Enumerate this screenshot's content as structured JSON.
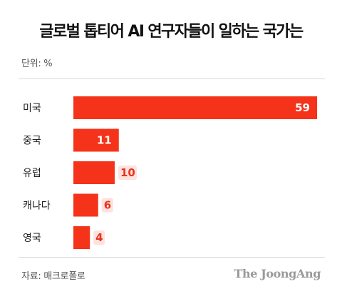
{
  "header": {
    "title": "글로벌 톱티어 AI 연구자들이 일하는 국가는",
    "unit": "단위: %"
  },
  "footer": {
    "source": "자료: 매크로폴로",
    "brand": "The JoongAng"
  },
  "colors": {
    "bar": "#f5331a",
    "value_label": "#e8341c",
    "value_label_bg": "#fde2de"
  },
  "chart_data": {
    "type": "bar",
    "orientation": "horizontal",
    "categories": [
      "미국",
      "중국",
      "유럽",
      "캐나다",
      "영국"
    ],
    "values": [
      59,
      11,
      10,
      6,
      4
    ],
    "title": "글로벌 톱티어 AI 연구자들이 일하는 국가는",
    "xlabel": "",
    "ylabel": "",
    "unit": "%",
    "xlim": [
      0,
      59
    ],
    "grid": false,
    "legend": "none"
  }
}
